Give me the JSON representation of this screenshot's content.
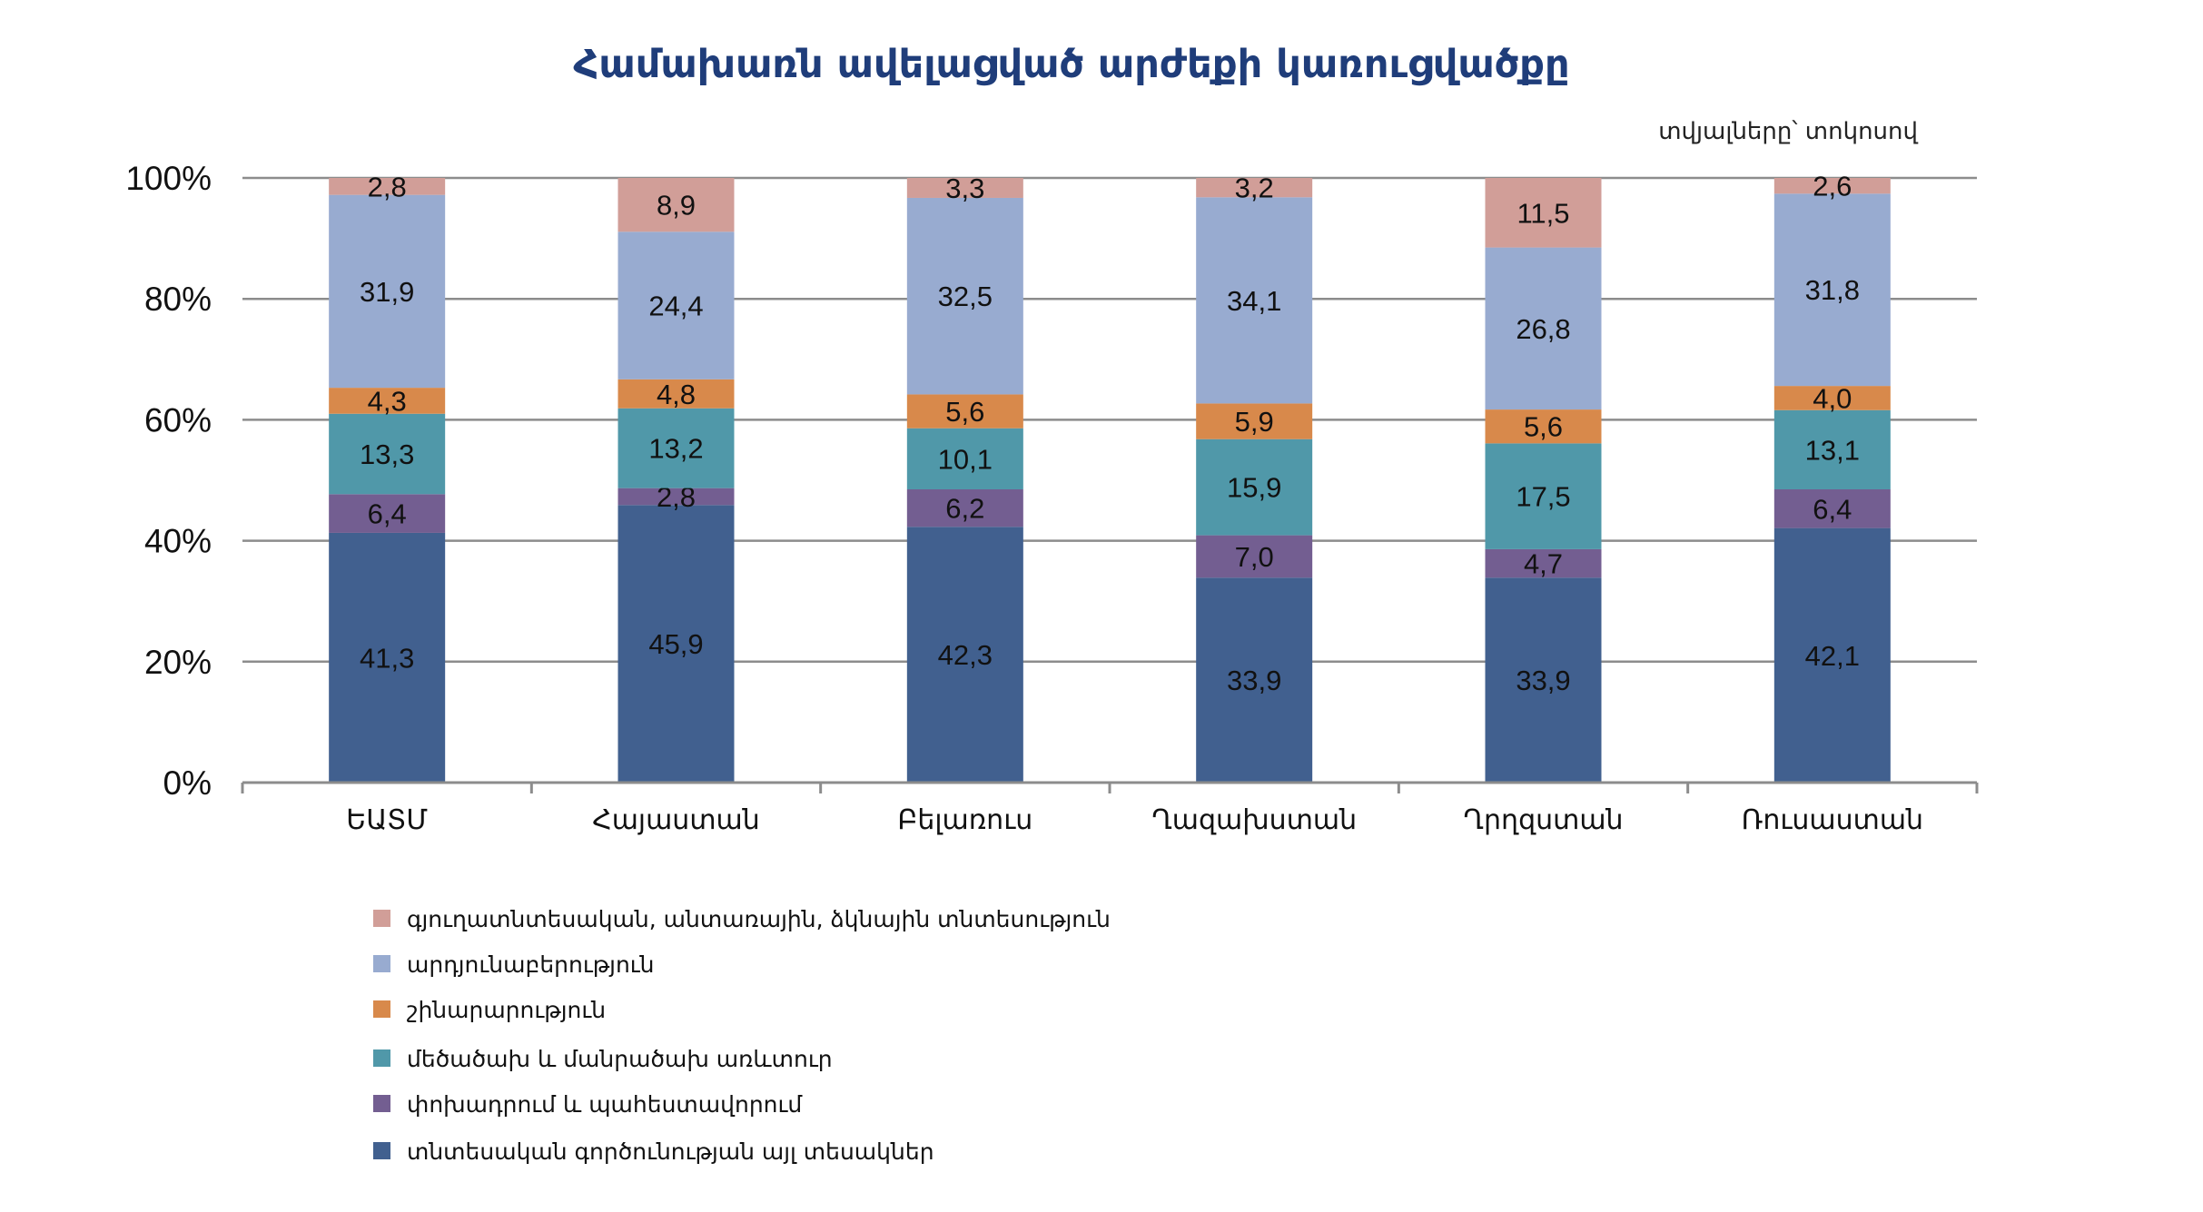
{
  "chart_data": {
    "type": "bar",
    "stacked": true,
    "percent": true,
    "title": "Համախառն ավելացված արժեքի կառուցվածքը",
    "unit_note": "տվյալները՝ տոկոսով",
    "categories": [
      "ԵԱՏՄ",
      "Հայաստան",
      "Բելառուս",
      "Ղազախստան",
      "Ղրղզստան",
      "Ռուսաստան"
    ],
    "ylim": [
      0,
      100
    ],
    "yticks": [
      "0%",
      "20%",
      "40%",
      "60%",
      "80%",
      "100%"
    ],
    "grid": true,
    "legend_position": "bottom-left",
    "series": [
      {
        "name": "տնտեսական գործունության այլ տեսակներ",
        "color": "#41608f",
        "values": [
          41.3,
          45.9,
          42.3,
          33.9,
          33.9,
          42.1
        ],
        "labels": [
          "41,3",
          "45,9",
          "42,3",
          "33,9",
          "33,9",
          "42,1"
        ]
      },
      {
        "name": "փոխադրում և պահեստավորում",
        "color": "#735e91",
        "values": [
          6.4,
          2.8,
          6.2,
          7.0,
          4.7,
          6.4
        ],
        "labels": [
          "6,4",
          "2,8",
          "6,2",
          "7,0",
          "4,7",
          "6,4"
        ]
      },
      {
        "name": "մեծածախ և մանրածախ առևտուր",
        "color": "#5098a9",
        "values": [
          13.3,
          13.2,
          10.1,
          15.9,
          17.5,
          13.1
        ],
        "labels": [
          "13,3",
          "13,2",
          "10,1",
          "15,9",
          "17,5",
          "13,1"
        ]
      },
      {
        "name": "շինարարություն",
        "color": "#d8894b",
        "values": [
          4.3,
          4.8,
          5.6,
          5.9,
          5.6,
          4.0
        ],
        "labels": [
          "4,3",
          "4,8",
          "5,6",
          "5,9",
          "5,6",
          "4,0"
        ]
      },
      {
        "name": "արդյունաբերություն",
        "color": "#98abd0",
        "values": [
          31.9,
          24.4,
          32.5,
          34.1,
          26.8,
          31.8
        ],
        "labels": [
          "31,9",
          "24,4",
          "32,5",
          "34,1",
          "26,8",
          "31,8"
        ]
      },
      {
        "name": "գյուղատնտեսական, անտառային, ձկնային տնտեսություն",
        "color": "#d19e98",
        "values": [
          2.8,
          8.9,
          3.3,
          3.2,
          11.5,
          2.6
        ],
        "labels": [
          "2,8",
          "8,9",
          "3,3",
          "3,2",
          "11,5",
          "2,6"
        ]
      }
    ]
  }
}
